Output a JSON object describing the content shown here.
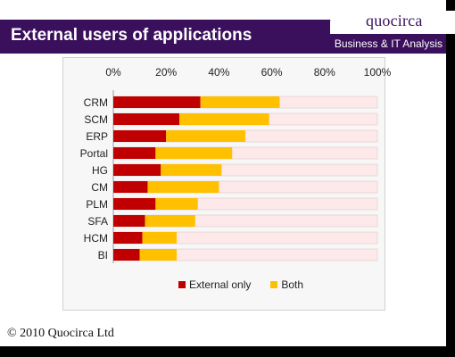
{
  "header": {
    "title": "External users of applications",
    "logo": "quocirca",
    "tagline": "Business & IT Analysis"
  },
  "footer": {
    "copyright": "© 2010 Quocirca Ltd"
  },
  "colors": {
    "header_bg": "#3a0f5c",
    "external_only": "#c00000",
    "both": "#ffc000",
    "remainder": "#fde9e9"
  },
  "chart_data": {
    "type": "bar",
    "orientation": "horizontal",
    "stacked": true,
    "categories": [
      "CRM",
      "SCM",
      "ERP",
      "Portal",
      "HG",
      "CM",
      "PLM",
      "SFA",
      "HCM",
      "BI"
    ],
    "series": [
      {
        "name": "External only",
        "values": [
          33,
          25,
          20,
          16,
          18,
          13,
          16,
          12,
          11,
          10
        ]
      },
      {
        "name": "Both",
        "values": [
          30,
          34,
          30,
          29,
          23,
          27,
          16,
          19,
          13,
          14
        ]
      }
    ],
    "x_ticks": [
      "0%",
      "20%",
      "40%",
      "60%",
      "80%",
      "100%"
    ],
    "xlim": [
      0,
      100
    ],
    "axis_position": "top",
    "grid": false,
    "legend_position": "bottom"
  }
}
